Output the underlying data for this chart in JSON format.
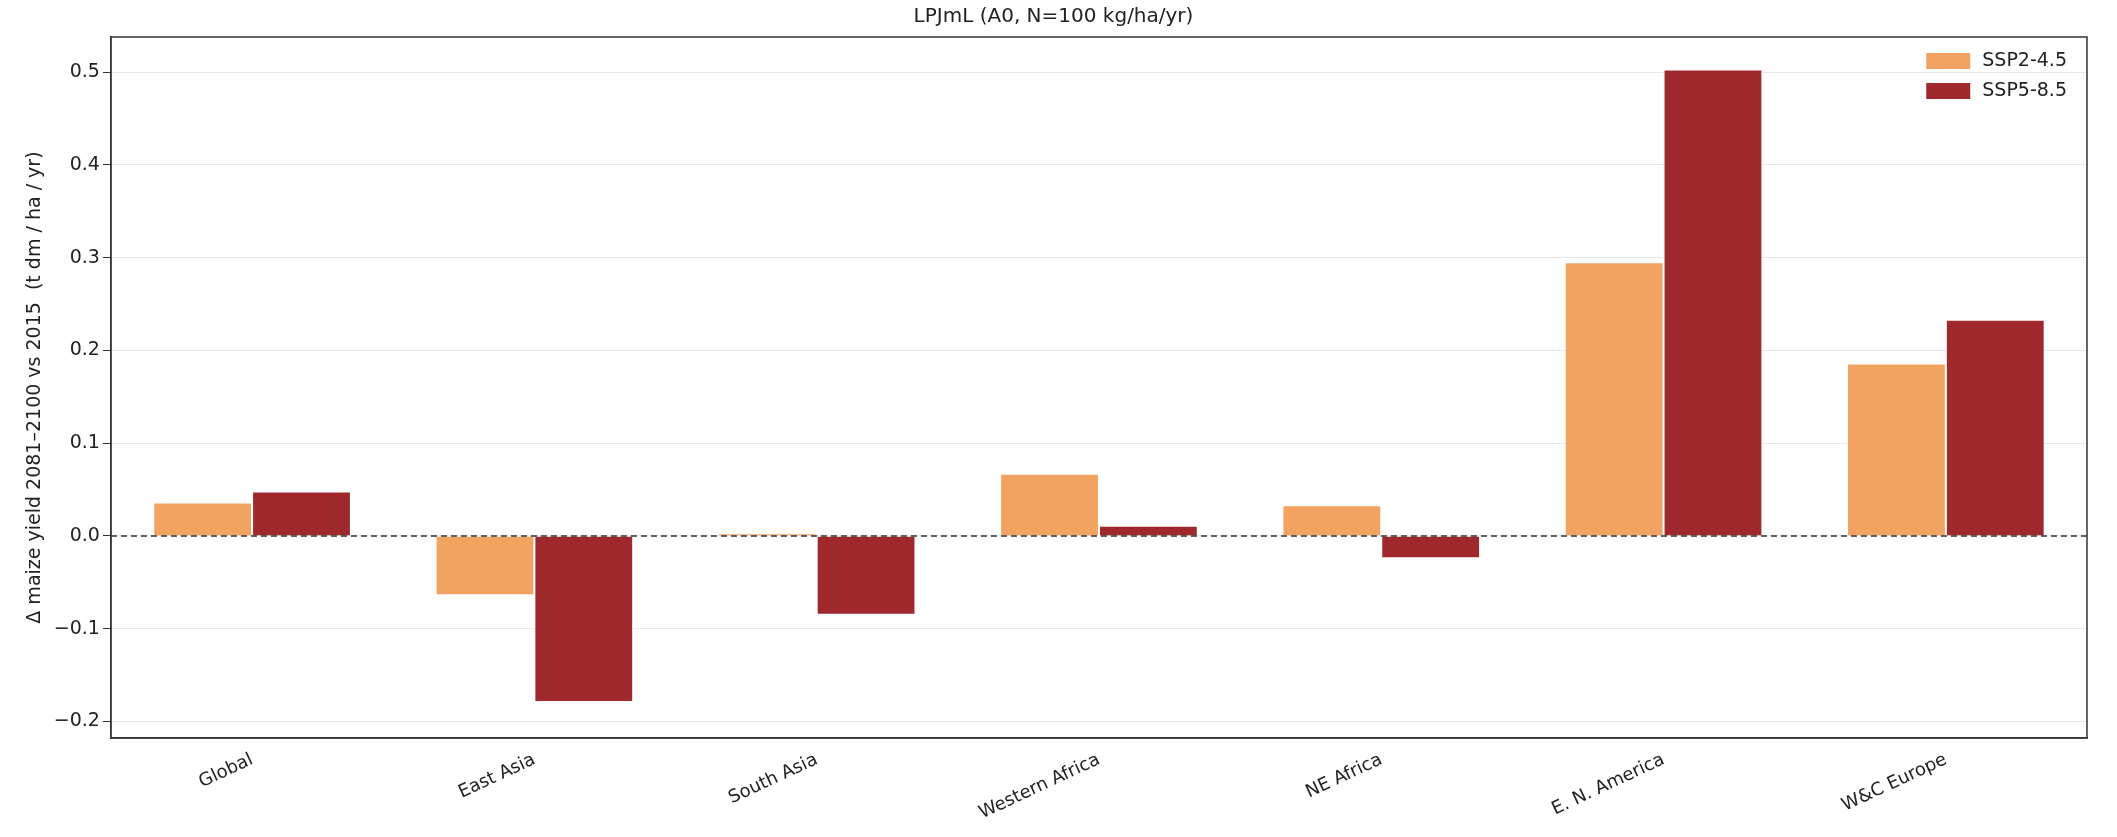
{
  "chart_data": {
    "type": "bar",
    "title": "LPJmL (A0, N=100 kg/ha/yr)",
    "ylabel": "Δ maize yield 2081–2100 vs 2015  (t dm / ha / yr)",
    "categories": [
      "Global",
      "East Asia",
      "South Asia",
      "Western Africa",
      "NE Africa",
      "E. N. America",
      "W&C Europe"
    ],
    "series": [
      {
        "name": "SSP2-4.5",
        "color": "#f2a361",
        "values": [
          0.036,
          -0.064,
          0.003,
          0.067,
          0.033,
          0.295,
          0.186
        ]
      },
      {
        "name": "SSP5-8.5",
        "color": "#9e282b",
        "values": [
          0.048,
          -0.179,
          -0.085,
          0.011,
          -0.024,
          0.503,
          0.233
        ]
      }
    ],
    "ylim": [
      -0.218,
      0.538
    ],
    "yticks": [
      {
        "value": -0.2,
        "label": "−0.2"
      },
      {
        "value": -0.1,
        "label": "−0.1"
      },
      {
        "value": 0,
        "label": "0.0"
      },
      {
        "value": 0.1,
        "label": "0.1"
      },
      {
        "value": 0.2,
        "label": "0.2"
      },
      {
        "value": 0.3,
        "label": "0.3"
      },
      {
        "value": 0.4,
        "label": "0.4"
      },
      {
        "value": 0.5,
        "label": "0.5"
      }
    ],
    "ref_lines": [
      {
        "axis": "y",
        "value": 0,
        "color": "#333333",
        "line_style": "dashed"
      }
    ],
    "grid": "y",
    "legend": "top right"
  }
}
